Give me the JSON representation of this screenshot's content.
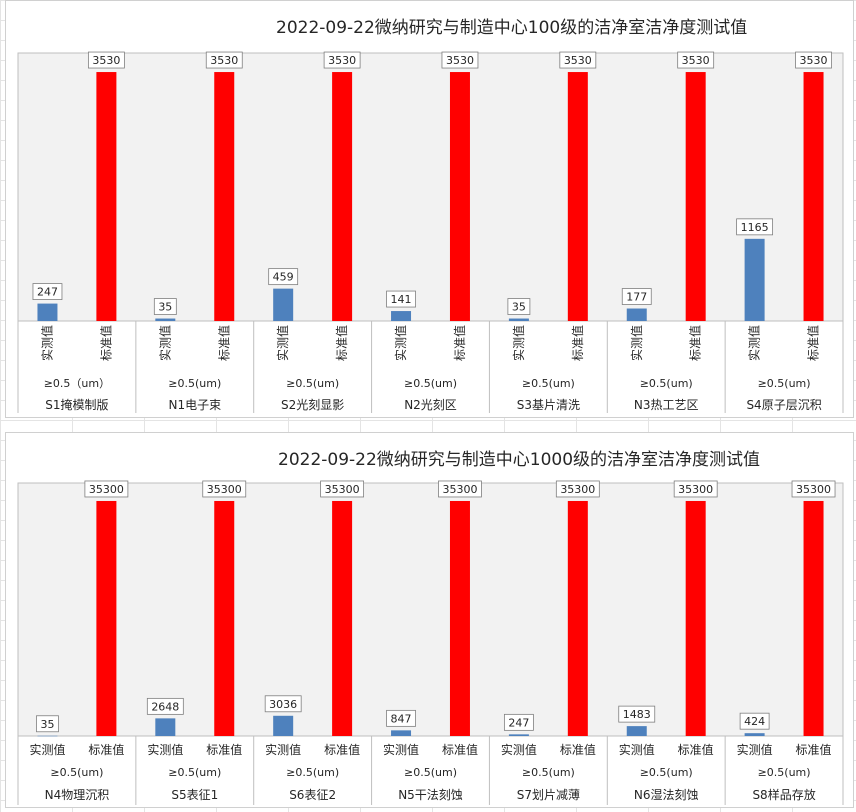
{
  "chart_data": [
    {
      "type": "bar",
      "title": "2022-09-22微纳研究与制造中心100级的洁净室洁净度测试值",
      "series": [
        {
          "name": "实测值",
          "color": "#4e81bd",
          "values": [
            247,
            35,
            459,
            141,
            35,
            177,
            1165
          ]
        },
        {
          "name": "标准值",
          "color": "#ff0000",
          "values": [
            3530,
            3530,
            3530,
            3530,
            3530,
            3530,
            3530
          ]
        }
      ],
      "particle_labels": [
        "≥0.5（um）",
        "≥0.5(um)",
        "≥0.5(um)",
        "≥0.5(um)",
        "≥0.5(um)",
        "≥0.5(um)",
        "≥0.5(um)"
      ],
      "groups": [
        "S1掩模制版",
        "N1电子束",
        "S2光刻显影",
        "N2光刻区",
        "S3基片清洗",
        "N3热工艺区",
        "S4原子层沉积"
      ],
      "ylim": [
        0,
        3800
      ],
      "category_label_orientation": "vertical",
      "grid": false,
      "legend": "none"
    },
    {
      "type": "bar",
      "title": "2022-09-22微纳研究与制造中心1000级的洁净室洁净度测试值",
      "series": [
        {
          "name": "实测值",
          "color": "#4e81bd",
          "values": [
            35,
            2648,
            3036,
            847,
            247,
            1483,
            424
          ]
        },
        {
          "name": "标准值",
          "color": "#ff0000",
          "values": [
            35300,
            35300,
            35300,
            35300,
            35300,
            35300,
            35300
          ]
        }
      ],
      "particle_labels": [
        "≥0.5(um)",
        "≥0.5(um)",
        "≥0.5(um)",
        "≥0.5(um)",
        "≥0.5(um)",
        "≥0.5(um)",
        "≥0.5(um)"
      ],
      "groups": [
        "N4物理沉积",
        "S5表征1",
        "S6表征2",
        "N5干法刻蚀",
        "S7划片减薄",
        "N6湿法刻蚀",
        "S8样品存放"
      ],
      "ylim": [
        0,
        38000
      ],
      "category_label_orientation": "horizontal",
      "grid": false,
      "legend": "none"
    }
  ]
}
